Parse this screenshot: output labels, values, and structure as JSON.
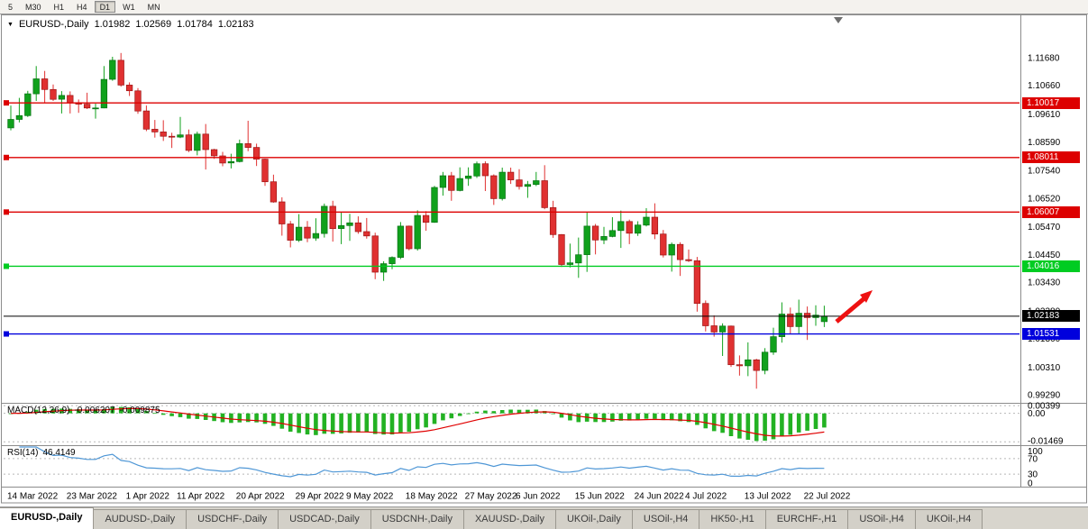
{
  "colors": {
    "candle_up": "#10a11c",
    "candle_up_border": "#067012",
    "candle_down": "#e03131",
    "candle_down_border": "#9c1414",
    "macd_hist": "#23b223",
    "macd_signal": "#e00000",
    "rsi_line": "#4f97d6",
    "line_red": "#dd0000",
    "line_green": "#00cc22",
    "line_blue": "#0000dd",
    "line_black": "#000000",
    "arrow": "#ee1111"
  },
  "toolbar": {
    "timeframes": [
      "5",
      "M30",
      "H1",
      "H4",
      "D1",
      "W1",
      "MN"
    ],
    "active": "D1"
  },
  "title": {
    "dropdown_icon": "▼",
    "symbol": "EURUSD-,Daily",
    "open": "1.01982",
    "high": "1.02569",
    "low": "1.01784",
    "close": "1.02183"
  },
  "price_axis_labels": [
    "1.11680",
    "1.10660",
    "1.09610",
    "1.08590",
    "1.07540",
    "1.06520",
    "1.05470",
    "1.04450",
    "1.03430",
    "1.02380",
    "1.01360",
    "1.00310",
    "0.99290"
  ],
  "hlines": [
    {
      "price": 1.10017,
      "label": "1.10017",
      "color_key": "line_red"
    },
    {
      "price": 1.08011,
      "label": "1.08011",
      "color_key": "line_red"
    },
    {
      "price": 1.06007,
      "label": "1.06007",
      "color_key": "line_red"
    },
    {
      "price": 1.04016,
      "label": "1.04016",
      "color_key": "line_green"
    },
    {
      "price": 1.01531,
      "label": "1.01531",
      "color_key": "line_blue"
    }
  ],
  "current_price": {
    "price": 1.02183,
    "label": "1.02183"
  },
  "indicators": {
    "macd": {
      "title": "MACD(12,26,9)",
      "value_main": "-0.006207",
      "value_signal": "-0.009875",
      "axis_labels": [
        {
          "v": 0.00399,
          "t": "0.00399"
        },
        {
          "v": 0,
          "t": "0.00"
        },
        {
          "v": -0.01469,
          "t": "-0.01469"
        }
      ]
    },
    "rsi": {
      "title": "RSI(14)",
      "value": "46.4149",
      "axis_labels": [
        {
          "v": 100,
          "t": "100"
        },
        {
          "v": 70,
          "t": "70"
        },
        {
          "v": 30,
          "t": "30"
        },
        {
          "v": 0,
          "t": "0"
        }
      ],
      "levels": [
        70,
        30
      ]
    }
  },
  "annotations": {
    "arrow": {
      "type": "trend-arrow",
      "direction": "up-right"
    },
    "chart_shift_marker": true
  },
  "chart_data": {
    "type": "candlestick",
    "symbol": "EURUSD",
    "timeframe": "Daily",
    "price_range": {
      "max": 1.132,
      "min": 0.99
    },
    "x_tick_labels": [
      "14 Mar 2022",
      "23 Mar 2022",
      "1 Apr 2022",
      "11 Apr 2022",
      "20 Apr 2022",
      "29 Apr 2022",
      "9 May 2022",
      "18 May 2022",
      "27 May 2022",
      "6 Jun 2022",
      "15 Jun 2022",
      "24 Jun 2022",
      "4 Jul 2022",
      "13 Jul 2022",
      "22 Jul 2022"
    ],
    "x_tick_indices": [
      0,
      7,
      14,
      20,
      27,
      34,
      40,
      47,
      54,
      60,
      67,
      74,
      80,
      87,
      94
    ],
    "candles": [
      [
        "2022-03-14",
        1.091,
        1.0992,
        1.0901,
        1.0941
      ],
      [
        "2022-03-15",
        1.0941,
        1.102,
        1.093,
        1.0955
      ],
      [
        "2022-03-16",
        1.0955,
        1.1046,
        1.095,
        1.1035
      ],
      [
        "2022-03-17",
        1.1035,
        1.1137,
        1.1009,
        1.109
      ],
      [
        "2022-03-18",
        1.109,
        1.1119,
        1.1003,
        1.1051
      ],
      [
        "2022-03-21",
        1.1051,
        1.1069,
        1.1009,
        1.1015
      ],
      [
        "2022-03-22",
        1.1015,
        1.1045,
        1.0963,
        1.1029
      ],
      [
        "2022-03-23",
        1.1029,
        1.1044,
        1.0963,
        1.1003
      ],
      [
        "2022-03-24",
        1.1003,
        1.1014,
        1.0965,
        1.0997
      ],
      [
        "2022-03-25",
        1.0997,
        1.1039,
        1.0979,
        1.0983
      ],
      [
        "2022-03-28",
        1.0983,
        1.0999,
        1.0944,
        1.0983
      ],
      [
        "2022-03-29",
        1.0983,
        1.1137,
        1.0982,
        1.1088
      ],
      [
        "2022-03-30",
        1.1088,
        1.1171,
        1.1083,
        1.1158
      ],
      [
        "2022-03-31",
        1.1158,
        1.1185,
        1.1061,
        1.1067
      ],
      [
        "2022-04-01",
        1.1067,
        1.1077,
        1.1027,
        1.1046
      ],
      [
        "2022-04-04",
        1.1046,
        1.1056,
        1.0962,
        1.0972
      ],
      [
        "2022-04-05",
        1.0972,
        1.0992,
        1.0898,
        1.0905
      ],
      [
        "2022-04-06",
        1.0905,
        1.0939,
        1.0874,
        1.0895
      ],
      [
        "2022-04-07",
        1.0895,
        1.0938,
        1.0862,
        1.0879
      ],
      [
        "2022-04-08",
        1.0879,
        1.0892,
        1.0836,
        1.0876
      ],
      [
        "2022-04-11",
        1.0876,
        1.095,
        1.0872,
        1.0884
      ],
      [
        "2022-04-12",
        1.0884,
        1.0904,
        1.0821,
        1.0827
      ],
      [
        "2022-04-13",
        1.0827,
        1.0896,
        1.0809,
        1.0887
      ],
      [
        "2022-04-14",
        1.0887,
        1.0924,
        1.0757,
        1.083
      ],
      [
        "2022-04-15",
        1.083,
        1.0833,
        1.0796,
        1.0807
      ],
      [
        "2022-04-18",
        1.0807,
        1.0822,
        1.0769,
        1.0781
      ],
      [
        "2022-04-19",
        1.0781,
        1.0815,
        1.0761,
        1.0786
      ],
      [
        "2022-04-20",
        1.0786,
        1.0867,
        1.0783,
        1.0852
      ],
      [
        "2022-04-21",
        1.0852,
        1.0936,
        1.0824,
        1.0838
      ],
      [
        "2022-04-22",
        1.0838,
        1.0852,
        1.077,
        1.0795
      ],
      [
        "2022-04-25",
        1.0795,
        1.0797,
        1.0697,
        1.0712
      ],
      [
        "2022-04-26",
        1.0712,
        1.0738,
        1.0635,
        1.0638
      ],
      [
        "2022-04-27",
        1.0638,
        1.0655,
        1.0514,
        1.0557
      ],
      [
        "2022-04-28",
        1.0557,
        1.0568,
        1.0471,
        1.0497
      ],
      [
        "2022-04-29",
        1.0497,
        1.0593,
        1.0491,
        1.0545
      ],
      [
        "2022-05-02",
        1.0545,
        1.0568,
        1.049,
        1.0505
      ],
      [
        "2022-05-03",
        1.0505,
        1.0578,
        1.0495,
        1.0522
      ],
      [
        "2022-05-04",
        1.0522,
        1.0632,
        1.0507,
        1.0622
      ],
      [
        "2022-05-05",
        1.0622,
        1.0642,
        1.0492,
        1.054
      ],
      [
        "2022-05-06",
        1.054,
        1.0599,
        1.0483,
        1.0551
      ],
      [
        "2022-05-09",
        1.0551,
        1.0594,
        1.0495,
        1.0561
      ],
      [
        "2022-05-10",
        1.0561,
        1.0585,
        1.0521,
        1.0529
      ],
      [
        "2022-05-11",
        1.0529,
        1.0579,
        1.0503,
        1.0513
      ],
      [
        "2022-05-12",
        1.0513,
        1.0525,
        1.0354,
        1.038
      ],
      [
        "2022-05-13",
        1.038,
        1.042,
        1.0348,
        1.0411
      ],
      [
        "2022-05-16",
        1.0411,
        1.0438,
        1.0391,
        1.0434
      ],
      [
        "2022-05-17",
        1.0434,
        1.0564,
        1.0428,
        1.0549
      ],
      [
        "2022-05-18",
        1.0549,
        1.0551,
        1.046,
        1.0466
      ],
      [
        "2022-05-19",
        1.0466,
        1.0607,
        1.0459,
        1.0588
      ],
      [
        "2022-05-20",
        1.0588,
        1.0604,
        1.0532,
        1.0563
      ],
      [
        "2022-05-23",
        1.0563,
        1.0697,
        1.0561,
        1.0691
      ],
      [
        "2022-05-24",
        1.0691,
        1.0748,
        1.0661,
        1.0734
      ],
      [
        "2022-05-25",
        1.0734,
        1.0748,
        1.0642,
        1.068
      ],
      [
        "2022-05-26",
        1.068,
        1.0765,
        1.0677,
        1.0724
      ],
      [
        "2022-05-27",
        1.0724,
        1.0765,
        1.0697,
        1.0733
      ],
      [
        "2022-05-30",
        1.0733,
        1.0786,
        1.0726,
        1.0778
      ],
      [
        "2022-05-31",
        1.0778,
        1.0787,
        1.0678,
        1.0734
      ],
      [
        "2022-06-01",
        1.0734,
        1.0739,
        1.0627,
        1.065
      ],
      [
        "2022-06-02",
        1.065,
        1.0764,
        1.0643,
        1.0747
      ],
      [
        "2022-06-03",
        1.0747,
        1.0764,
        1.0704,
        1.0719
      ],
      [
        "2022-06-06",
        1.0719,
        1.0758,
        1.0683,
        1.0695
      ],
      [
        "2022-06-07",
        1.0695,
        1.0715,
        1.0653,
        1.0702
      ],
      [
        "2022-06-08",
        1.0702,
        1.0748,
        1.0696,
        1.0716
      ],
      [
        "2022-06-09",
        1.0716,
        1.0773,
        1.0611,
        1.0617
      ],
      [
        "2022-06-10",
        1.0617,
        1.0642,
        1.0506,
        1.0518
      ],
      [
        "2022-06-13",
        1.0518,
        1.052,
        1.0399,
        1.0408
      ],
      [
        "2022-06-14",
        1.0408,
        1.0485,
        1.0397,
        1.0414
      ],
      [
        "2022-06-15",
        1.0414,
        1.0507,
        1.0359,
        1.0444
      ],
      [
        "2022-06-16",
        1.0444,
        1.0601,
        1.0381,
        1.0549
      ],
      [
        "2022-06-17",
        1.0549,
        1.0557,
        1.0445,
        1.0498
      ],
      [
        "2022-06-20",
        1.0498,
        1.0546,
        1.0483,
        1.0511
      ],
      [
        "2022-06-21",
        1.0511,
        1.0582,
        1.0508,
        1.0533
      ],
      [
        "2022-06-22",
        1.0533,
        1.0606,
        1.0469,
        1.0566
      ],
      [
        "2022-06-23",
        1.0566,
        1.0573,
        1.0483,
        1.0523
      ],
      [
        "2022-06-24",
        1.0523,
        1.0567,
        1.0513,
        1.0553
      ],
      [
        "2022-06-27",
        1.0553,
        1.0615,
        1.0548,
        1.0582
      ],
      [
        "2022-06-28",
        1.0582,
        1.0633,
        1.0501,
        1.052
      ],
      [
        "2022-06-29",
        1.052,
        1.0535,
        1.0434,
        1.0443
      ],
      [
        "2022-06-30",
        1.0443,
        1.0489,
        1.0382,
        1.0482
      ],
      [
        "2022-07-01",
        1.0482,
        1.049,
        1.0366,
        1.0426
      ],
      [
        "2022-07-04",
        1.0426,
        1.0463,
        1.0417,
        1.0422
      ],
      [
        "2022-07-05",
        1.0422,
        1.0436,
        1.0235,
        1.0265
      ],
      [
        "2022-07-06",
        1.0265,
        1.0276,
        1.0162,
        1.0183
      ],
      [
        "2022-07-07",
        1.0183,
        1.0221,
        1.0143,
        1.016
      ],
      [
        "2022-07-08",
        1.016,
        1.0192,
        1.0072,
        1.0182
      ],
      [
        "2022-07-11",
        1.0182,
        1.0184,
        1.0032,
        1.004
      ],
      [
        "2022-07-12",
        1.004,
        1.0074,
        1.0,
        1.0036
      ],
      [
        "2022-07-13",
        1.0036,
        1.0122,
        0.9998,
        1.0058
      ],
      [
        "2022-07-14",
        1.0058,
        1.0062,
        0.9952,
        1.0019
      ],
      [
        "2022-07-15",
        1.0019,
        1.0101,
        1.0005,
        1.0086
      ],
      [
        "2022-07-18",
        1.0086,
        1.0176,
        1.0076,
        1.0143
      ],
      [
        "2022-07-19",
        1.0143,
        1.0269,
        1.0121,
        1.0226
      ],
      [
        "2022-07-20",
        1.0226,
        1.025,
        1.0155,
        1.018
      ],
      [
        "2022-07-21",
        1.018,
        1.0279,
        1.0152,
        1.0229
      ],
      [
        "2022-07-22",
        1.0229,
        1.0254,
        1.0131,
        1.0213
      ],
      [
        "2022-07-25",
        1.0213,
        1.0258,
        1.0183,
        1.0222
      ],
      [
        "2022-07-26",
        1.01982,
        1.02569,
        1.01784,
        1.02183
      ]
    ]
  },
  "tabs": [
    {
      "label": "EURUSD-,Daily",
      "active": true
    },
    {
      "label": "AUDUSD-,Daily",
      "active": false
    },
    {
      "label": "USDCHF-,Daily",
      "active": false
    },
    {
      "label": "USDCAD-,Daily",
      "active": false
    },
    {
      "label": "USDCNH-,Daily",
      "active": false
    },
    {
      "label": "XAUUSD-,Daily",
      "active": false
    },
    {
      "label": "UKOil-,Daily",
      "active": false
    },
    {
      "label": "USOil-,H4",
      "active": false
    },
    {
      "label": "HK50-,H1",
      "active": false
    },
    {
      "label": "EURCHF-,H1",
      "active": false
    },
    {
      "label": "USOil-,H4",
      "active": false
    },
    {
      "label": "UKOil-,H4",
      "active": false
    }
  ]
}
